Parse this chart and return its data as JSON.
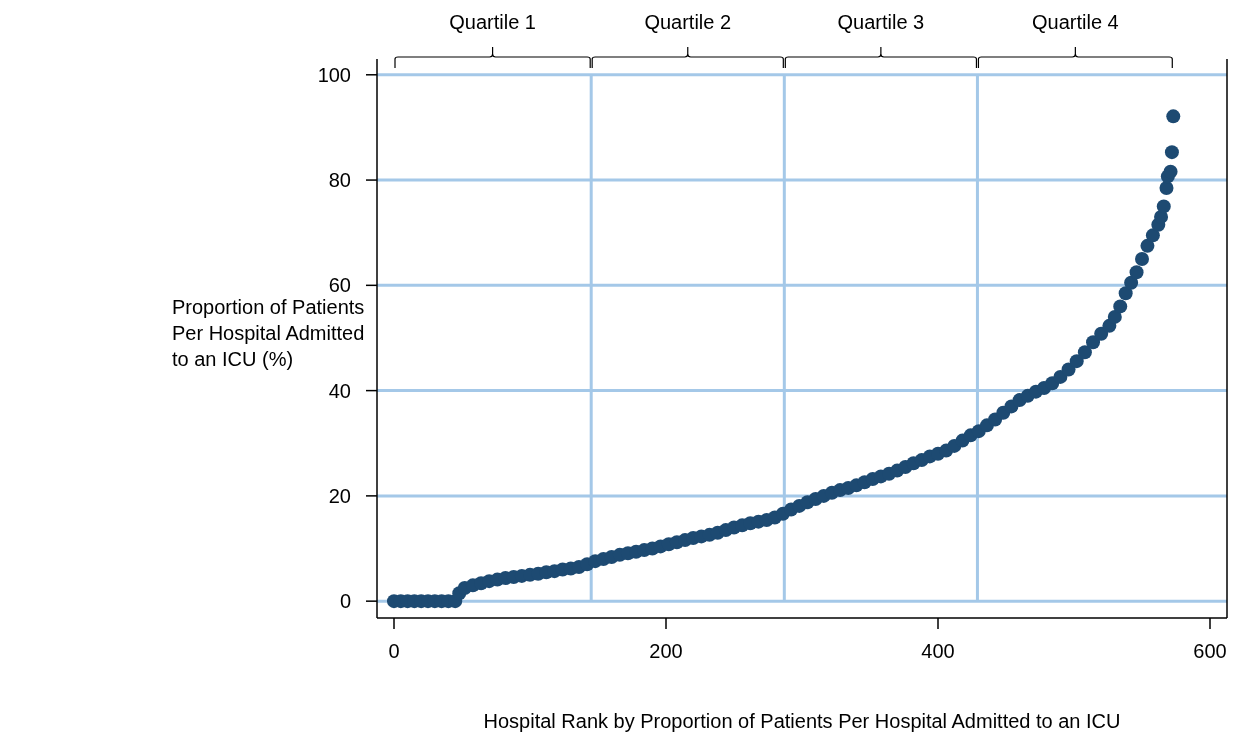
{
  "chart_data": {
    "type": "scatter",
    "xlabel": "Hospital Rank by Proportion of Patients Per Hospital Admitted to an ICU",
    "ylabel": "Proportion of Patients Per Hospital Admitted to an ICU (%)",
    "xlim": [
      -12.5,
      612.5
    ],
    "ylim": [
      -3.2,
      103
    ],
    "xticks": [
      0,
      200,
      400,
      600
    ],
    "yticks": [
      0,
      20,
      40,
      60,
      80,
      100
    ],
    "grid": "y",
    "marker": "circle",
    "ref_lines": [
      {
        "axis": "x",
        "value": 145,
        "color": "#a4c8e8"
      },
      {
        "axis": "x",
        "value": 287,
        "color": "#a4c8e8"
      },
      {
        "axis": "x",
        "value": 429,
        "color": "#a4c8e8"
      }
    ],
    "annotations": [
      "Quartile 1",
      "Quartile 2",
      "Quartile 3",
      "Quartile 4"
    ],
    "series": [
      {
        "color": "#1d4a72",
        "x": [
          0,
          5,
          10,
          15,
          20,
          25,
          30,
          35,
          40,
          45,
          48,
          52,
          58,
          64,
          70,
          76,
          82,
          88,
          94,
          100,
          106,
          112,
          118,
          124,
          130,
          136,
          142,
          148,
          154,
          160,
          166,
          172,
          178,
          184,
          190,
          196,
          202,
          208,
          214,
          220,
          226,
          232,
          238,
          244,
          250,
          256,
          262,
          268,
          274,
          280,
          286,
          292,
          298,
          304,
          310,
          316,
          322,
          328,
          334,
          340,
          346,
          352,
          358,
          364,
          370,
          376,
          382,
          388,
          394,
          400,
          406,
          412,
          418,
          424,
          430,
          436,
          442,
          448,
          454,
          460,
          466,
          472,
          478,
          484,
          490,
          496,
          502,
          508,
          514,
          520,
          526,
          530,
          534,
          538,
          542,
          546,
          550,
          554,
          558,
          562,
          564,
          566,
          568,
          569,
          571,
          572,
          573
        ],
        "values": [
          0,
          0,
          0,
          0,
          0,
          0,
          0,
          0,
          0,
          0,
          1.5,
          2.5,
          3.0,
          3.4,
          3.8,
          4.1,
          4.4,
          4.6,
          4.8,
          5.0,
          5.2,
          5.5,
          5.7,
          6.0,
          6.2,
          6.5,
          7.0,
          7.6,
          8.0,
          8.4,
          8.8,
          9.1,
          9.4,
          9.7,
          10.0,
          10.4,
          10.8,
          11.2,
          11.6,
          12.0,
          12.3,
          12.6,
          13.0,
          13.5,
          14.0,
          14.4,
          14.8,
          15.1,
          15.4,
          15.9,
          16.6,
          17.4,
          18.1,
          18.8,
          19.4,
          20.0,
          20.6,
          21.1,
          21.5,
          22.0,
          22.6,
          23.2,
          23.7,
          24.2,
          24.8,
          25.5,
          26.2,
          26.8,
          27.5,
          28.0,
          28.6,
          29.5,
          30.5,
          31.5,
          32.3,
          33.4,
          34.5,
          35.8,
          37.0,
          38.2,
          39.0,
          39.8,
          40.5,
          41.4,
          42.6,
          44.0,
          45.6,
          47.3,
          49.2,
          50.8,
          52.3,
          54.0,
          56.0,
          58.5,
          60.5,
          62.5,
          65.0,
          67.5,
          69.5,
          71.5,
          73.0,
          75.0,
          78.5,
          80.7,
          81.6,
          85.3,
          92.1
        ]
      }
    ]
  }
}
